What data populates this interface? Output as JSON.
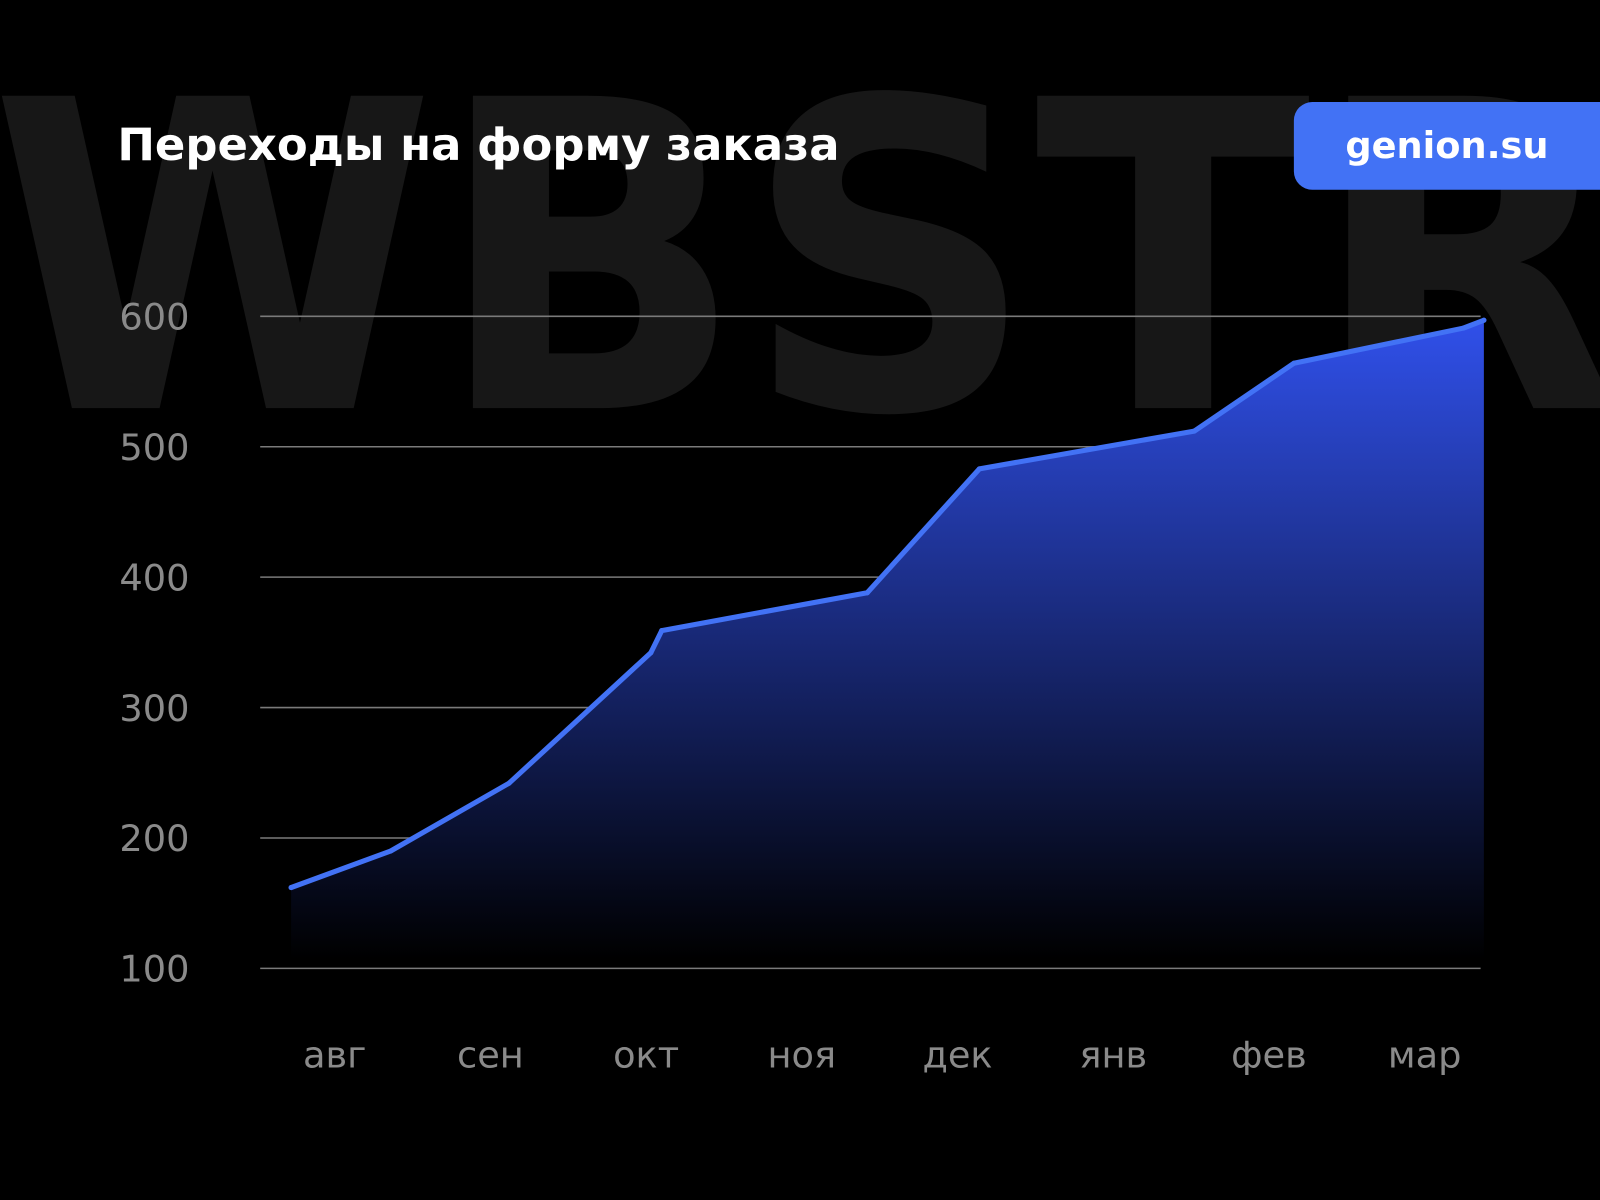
{
  "watermark": "WBSTR",
  "brand": {
    "label": "genion.su",
    "color": "#4272f5"
  },
  "chart_data": {
    "type": "area",
    "title": "Переходы на форму заказа",
    "xlabel": "",
    "ylabel": "",
    "categories": [
      "авг",
      "сен",
      "окт",
      "ноя",
      "дек",
      "янв",
      "фев",
      "мар"
    ],
    "ylim": [
      100,
      600
    ],
    "yticks": [
      "100",
      "200",
      "300",
      "400",
      "500",
      "600"
    ],
    "grid": true,
    "line_color": "#4272f5",
    "fill_color": "#2f4ee6",
    "series": [
      {
        "points": [
          {
            "x": -0.28,
            "y": 162
          },
          {
            "x": 0.36,
            "y": 190
          },
          {
            "x": 1.12,
            "y": 242
          },
          {
            "x": 2.03,
            "y": 342
          },
          {
            "x": 2.1,
            "y": 359
          },
          {
            "x": 3.42,
            "y": 388
          },
          {
            "x": 4.14,
            "y": 483
          },
          {
            "x": 5.52,
            "y": 512
          },
          {
            "x": 6.16,
            "y": 564
          },
          {
            "x": 7.25,
            "y": 591
          },
          {
            "x": 7.38,
            "y": 597
          }
        ]
      }
    ]
  }
}
